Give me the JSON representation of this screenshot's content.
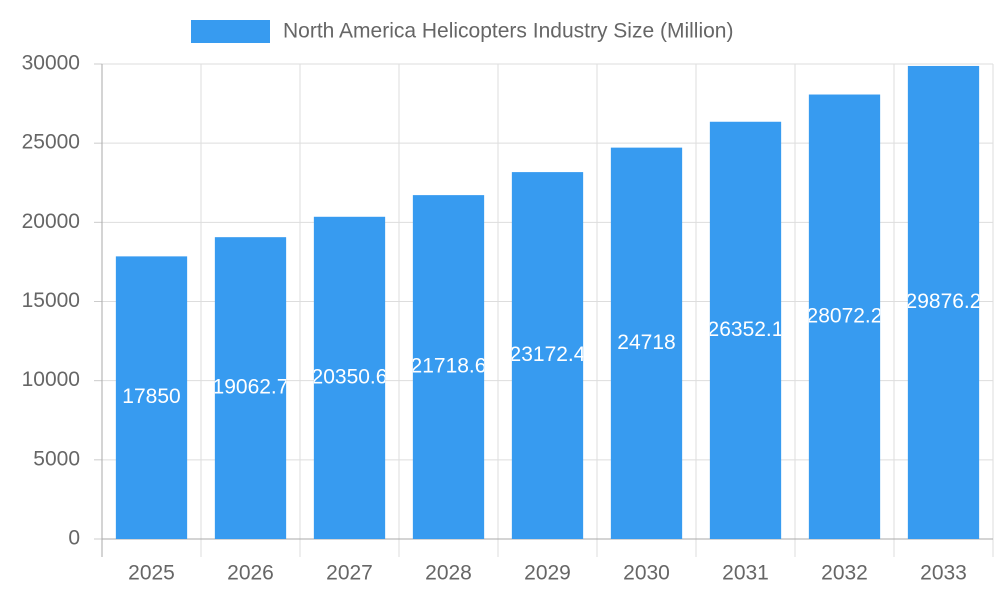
{
  "chart_data": {
    "type": "bar",
    "series": [
      {
        "name": "North America Helicopters Industry Size (Million)",
        "color": "#379bf0",
        "values": [
          17850,
          19062.7,
          20350.6,
          21718.6,
          23172.4,
          24718,
          26352.1,
          28072.2,
          29876.2
        ]
      }
    ],
    "categories": [
      "2025",
      "2026",
      "2027",
      "2028",
      "2029",
      "2030",
      "2031",
      "2032",
      "2033"
    ],
    "ylim": [
      0,
      30000
    ],
    "yticks": [
      0,
      5000,
      10000,
      15000,
      20000,
      25000,
      30000
    ],
    "grid": true
  }
}
